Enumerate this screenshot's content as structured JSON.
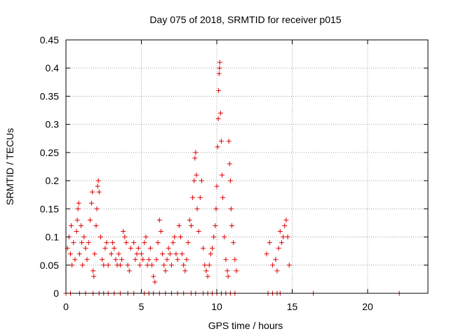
{
  "chart_data": {
    "type": "scatter",
    "title": "Day 075 of 2018, SRMTID for receiver p015",
    "xlabel": "GPS time / hours",
    "ylabel": "SRMTID / TECUs",
    "xlim": [
      0,
      24
    ],
    "ylim": [
      0,
      0.45
    ],
    "xticks": [
      "0",
      "5",
      "10",
      "15",
      "20"
    ],
    "yticks": [
      "0",
      "0.05",
      "0.1",
      "0.15",
      "0.2",
      "0.25",
      "0.3",
      "0.35",
      "0.4",
      "0.45"
    ],
    "grid": true,
    "marker": "+",
    "color": "#e00000",
    "series": [
      {
        "name": "SRMTID",
        "points": [
          [
            0.1,
            0.08
          ],
          [
            0.2,
            0.1
          ],
          [
            0.3,
            0.07
          ],
          [
            0.35,
            0.12
          ],
          [
            0.4,
            0.05
          ],
          [
            0.5,
            0.09
          ],
          [
            0.6,
            0.06
          ],
          [
            0.7,
            0.11
          ],
          [
            0.75,
            0.13
          ],
          [
            0.8,
            0.15
          ],
          [
            0.85,
            0.16
          ],
          [
            0.9,
            0.07
          ],
          [
            1.0,
            0.12
          ],
          [
            1.05,
            0.09
          ],
          [
            1.1,
            0.05
          ],
          [
            1.2,
            0.1
          ],
          [
            1.3,
            0.08
          ],
          [
            1.4,
            0.06
          ],
          [
            1.5,
            0.09
          ],
          [
            1.6,
            0.13
          ],
          [
            1.7,
            0.16
          ],
          [
            1.75,
            0.18
          ],
          [
            1.8,
            0.04
          ],
          [
            1.85,
            0.03
          ],
          [
            1.9,
            0.07
          ],
          [
            2.0,
            0.12
          ],
          [
            2.05,
            0.15
          ],
          [
            2.1,
            0.19
          ],
          [
            2.15,
            0.2
          ],
          [
            2.2,
            0.18
          ],
          [
            2.3,
            0.1
          ],
          [
            2.4,
            0.06
          ],
          [
            2.5,
            0.05
          ],
          [
            2.6,
            0.08
          ],
          [
            2.7,
            0.09
          ],
          [
            2.8,
            0.05
          ],
          [
            3.0,
            0.07
          ],
          [
            3.1,
            0.09
          ],
          [
            3.2,
            0.08
          ],
          [
            3.3,
            0.06
          ],
          [
            3.4,
            0.05
          ],
          [
            3.5,
            0.07
          ],
          [
            3.6,
            0.05
          ],
          [
            3.7,
            0.06
          ],
          [
            3.8,
            0.11
          ],
          [
            3.9,
            0.1
          ],
          [
            4.0,
            0.09
          ],
          [
            4.1,
            0.05
          ],
          [
            4.2,
            0.04
          ],
          [
            4.3,
            0.08
          ],
          [
            4.5,
            0.09
          ],
          [
            4.6,
            0.06
          ],
          [
            4.7,
            0.07
          ],
          [
            4.8,
            0.08
          ],
          [
            4.9,
            0.05
          ],
          [
            5.0,
            0.07
          ],
          [
            5.1,
            0.06
          ],
          [
            5.2,
            0.09
          ],
          [
            5.3,
            0.1
          ],
          [
            5.4,
            0.05
          ],
          [
            5.5,
            0.06
          ],
          [
            5.6,
            0.08
          ],
          [
            5.7,
            0.05
          ],
          [
            5.8,
            0.03
          ],
          [
            5.9,
            0.02
          ],
          [
            6.0,
            0.06
          ],
          [
            6.1,
            0.09
          ],
          [
            6.2,
            0.13
          ],
          [
            6.3,
            0.11
          ],
          [
            6.4,
            0.07
          ],
          [
            6.5,
            0.05
          ],
          [
            6.6,
            0.04
          ],
          [
            6.7,
            0.06
          ],
          [
            6.8,
            0.08
          ],
          [
            6.9,
            0.07
          ],
          [
            7.0,
            0.05
          ],
          [
            7.1,
            0.09
          ],
          [
            7.2,
            0.1
          ],
          [
            7.3,
            0.07
          ],
          [
            7.4,
            0.06
          ],
          [
            7.5,
            0.12
          ],
          [
            7.6,
            0.1
          ],
          [
            7.7,
            0.07
          ],
          [
            7.8,
            0.05
          ],
          [
            7.9,
            0.04
          ],
          [
            8.0,
            0.06
          ],
          [
            8.1,
            0.09
          ],
          [
            8.2,
            0.13
          ],
          [
            8.3,
            0.12
          ],
          [
            8.4,
            0.17
          ],
          [
            8.5,
            0.2
          ],
          [
            8.55,
            0.24
          ],
          [
            8.6,
            0.25
          ],
          [
            8.65,
            0.21
          ],
          [
            8.7,
            0.15
          ],
          [
            8.8,
            0.11
          ],
          [
            8.9,
            0.17
          ],
          [
            9.0,
            0.2
          ],
          [
            9.1,
            0.08
          ],
          [
            9.2,
            0.05
          ],
          [
            9.3,
            0.04
          ],
          [
            9.4,
            0.03
          ],
          [
            9.5,
            0.05
          ],
          [
            9.6,
            0.07
          ],
          [
            9.7,
            0.08
          ],
          [
            9.8,
            0.1
          ],
          [
            9.9,
            0.12
          ],
          [
            9.95,
            0.15
          ],
          [
            10.0,
            0.19
          ],
          [
            10.05,
            0.26
          ],
          [
            10.1,
            0.31
          ],
          [
            10.12,
            0.36
          ],
          [
            10.15,
            0.39
          ],
          [
            10.18,
            0.4
          ],
          [
            10.2,
            0.41
          ],
          [
            10.25,
            0.32
          ],
          [
            10.3,
            0.27
          ],
          [
            10.35,
            0.21
          ],
          [
            10.4,
            0.17
          ],
          [
            10.5,
            0.1
          ],
          [
            10.6,
            0.06
          ],
          [
            10.7,
            0.04
          ],
          [
            10.75,
            0.03
          ],
          [
            10.8,
            0.27
          ],
          [
            10.85,
            0.23
          ],
          [
            10.9,
            0.2
          ],
          [
            10.95,
            0.15
          ],
          [
            11.0,
            0.12
          ],
          [
            11.1,
            0.09
          ],
          [
            11.2,
            0.06
          ],
          [
            11.3,
            0.04
          ],
          [
            13.3,
            0.07
          ],
          [
            13.5,
            0.09
          ],
          [
            13.7,
            0.05
          ],
          [
            13.9,
            0.06
          ],
          [
            14.0,
            0.04
          ],
          [
            14.1,
            0.08
          ],
          [
            14.2,
            0.11
          ],
          [
            14.3,
            0.09
          ],
          [
            14.4,
            0.1
          ],
          [
            14.5,
            0.12
          ],
          [
            14.6,
            0.13
          ],
          [
            14.7,
            0.1
          ],
          [
            14.8,
            0.05
          ],
          [
            0.0,
            0
          ],
          [
            0.3,
            0
          ],
          [
            0.9,
            0
          ],
          [
            1.3,
            0
          ],
          [
            1.8,
            0
          ],
          [
            2.2,
            0
          ],
          [
            2.5,
            0
          ],
          [
            2.8,
            0
          ],
          [
            3.2,
            0
          ],
          [
            3.6,
            0
          ],
          [
            4.1,
            0
          ],
          [
            4.5,
            0
          ],
          [
            5.2,
            0
          ],
          [
            5.5,
            0
          ],
          [
            5.8,
            0
          ],
          [
            6.2,
            0
          ],
          [
            6.6,
            0
          ],
          [
            7.0,
            0
          ],
          [
            7.4,
            0
          ],
          [
            7.8,
            0
          ],
          [
            8.3,
            0
          ],
          [
            8.6,
            0
          ],
          [
            9.1,
            0
          ],
          [
            9.4,
            0
          ],
          [
            9.7,
            0
          ],
          [
            10.0,
            0
          ],
          [
            10.3,
            0
          ],
          [
            10.6,
            0
          ],
          [
            10.9,
            0
          ],
          [
            11.2,
            0
          ],
          [
            13.4,
            0
          ],
          [
            13.7,
            0
          ],
          [
            14.0,
            0
          ],
          [
            14.2,
            0
          ],
          [
            16.4,
            0
          ],
          [
            22.1,
            0
          ]
        ]
      }
    ]
  }
}
